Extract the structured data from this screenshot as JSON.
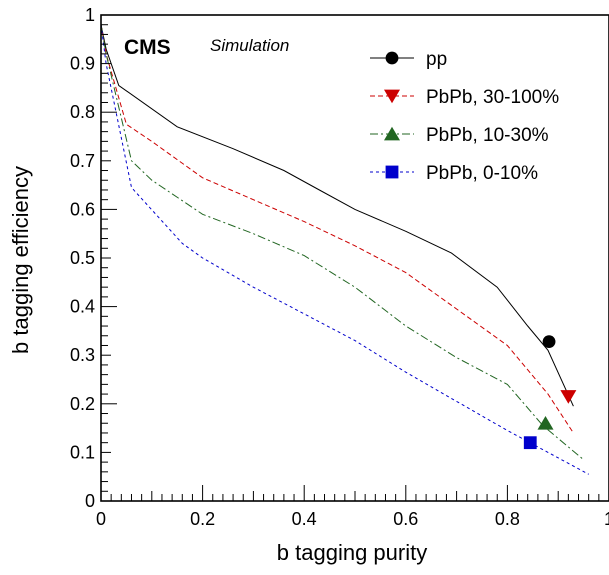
{
  "chart_data": {
    "type": "line",
    "title": "",
    "xlabel": "b tagging purity",
    "ylabel": "b tagging efficiency",
    "xlim": [
      0,
      1
    ],
    "ylim": [
      0,
      1
    ],
    "x_ticks": [
      "0",
      "0.2",
      "0.4",
      "0.6",
      "0.8",
      "1"
    ],
    "y_ticks": [
      "0",
      "0.1",
      "0.2",
      "0.3",
      "0.4",
      "0.5",
      "0.6",
      "0.7",
      "0.8",
      "0.9",
      "1"
    ],
    "grid": false,
    "legend_position": "top-right",
    "annotation": {
      "experiment": "CMS",
      "label": "Simulation"
    },
    "series": [
      {
        "name": "pp",
        "color": "#000000",
        "line_style": "solid",
        "marker": "circle",
        "marker_point": [
          0.882,
          0.328
        ],
        "x": [
          0.0,
          0.01,
          0.035,
          0.15,
          0.26,
          0.36,
          0.43,
          0.5,
          0.6,
          0.69,
          0.78,
          0.84,
          0.88,
          0.93
        ],
        "y": [
          0.98,
          0.93,
          0.855,
          0.77,
          0.725,
          0.68,
          0.64,
          0.6,
          0.555,
          0.51,
          0.44,
          0.36,
          0.31,
          0.195
        ]
      },
      {
        "name": "PbPb, 30-100%",
        "color": "#cc0000",
        "line_style": "dashed",
        "marker": "triangle-down",
        "marker_point": [
          0.92,
          0.215
        ],
        "x": [
          0.0,
          0.01,
          0.05,
          0.1,
          0.2,
          0.3,
          0.4,
          0.5,
          0.6,
          0.7,
          0.8,
          0.88,
          0.93
        ],
        "y": [
          0.98,
          0.92,
          0.775,
          0.74,
          0.665,
          0.62,
          0.575,
          0.525,
          0.47,
          0.395,
          0.32,
          0.22,
          0.14
        ]
      },
      {
        "name": "PbPb, 10-30%",
        "color": "#226622",
        "line_style": "dash-dot",
        "marker": "triangle-up",
        "marker_point": [
          0.875,
          0.16
        ],
        "x": [
          0.0,
          0.01,
          0.06,
          0.1,
          0.2,
          0.3,
          0.4,
          0.5,
          0.6,
          0.7,
          0.8,
          0.87,
          0.95
        ],
        "y": [
          0.98,
          0.92,
          0.7,
          0.66,
          0.59,
          0.55,
          0.505,
          0.44,
          0.36,
          0.295,
          0.24,
          0.155,
          0.085
        ]
      },
      {
        "name": "PbPb, 0-10%",
        "color": "#0000cc",
        "line_style": "dotted",
        "marker": "square",
        "marker_point": [
          0.845,
          0.12
        ],
        "x": [
          0.0,
          0.01,
          0.06,
          0.16,
          0.2,
          0.3,
          0.4,
          0.5,
          0.6,
          0.7,
          0.8,
          0.88,
          0.96
        ],
        "y": [
          0.98,
          0.9,
          0.645,
          0.53,
          0.5,
          0.44,
          0.385,
          0.33,
          0.265,
          0.205,
          0.145,
          0.1,
          0.055
        ]
      }
    ]
  }
}
